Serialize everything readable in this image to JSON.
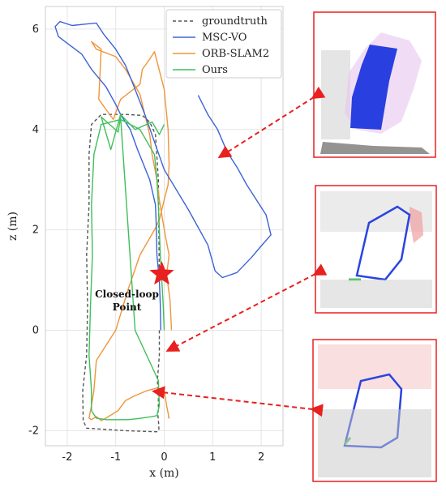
{
  "chart_data": {
    "type": "line",
    "title": "",
    "xlabel": "x (m)",
    "ylabel": "z (m)",
    "xlim": [
      -2.45,
      2.45
    ],
    "ylim": [
      -2.3,
      6.45
    ],
    "xticks": [
      -2,
      -1,
      0,
      1,
      2
    ],
    "yticks": [
      -2,
      0,
      2,
      4,
      6
    ],
    "grid": true,
    "legend_position": "top-right",
    "annotation": {
      "text_line1": "Closed-loop",
      "text_line2": "Point",
      "star_at": [
        -0.05,
        1.12
      ]
    },
    "series": [
      {
        "name": "groundtruth",
        "color": "#555555",
        "style": "dashed",
        "x": [
          -0.1,
          -0.1,
          -0.14,
          -0.12,
          -0.12,
          -0.13,
          -0.12,
          -0.11,
          -0.11,
          -0.12,
          -0.14,
          -0.2,
          -0.8,
          -1.6,
          -1.67,
          -1.68,
          -1.6,
          -1.58,
          -1.6,
          -1.55,
          -1.55,
          -1.5,
          -1.3,
          -0.8,
          -0.45,
          -0.3,
          -0.18,
          -0.12,
          -0.1
        ],
        "y": [
          0.0,
          -0.5,
          -1.0,
          -1.35,
          -1.55,
          -1.68,
          -1.8,
          -1.9,
          -1.97,
          -2.0,
          -2.02,
          -2.02,
          -2.0,
          -1.95,
          -1.8,
          -1.2,
          -0.5,
          0.5,
          1.5,
          2.5,
          3.5,
          4.1,
          4.3,
          4.3,
          4.28,
          4.15,
          3.9,
          3.0,
          1.0
        ]
      },
      {
        "name": "MSC-VO",
        "color": "#3b63d6",
        "style": "solid",
        "x": [
          -0.07,
          -0.08,
          -0.1,
          -0.15,
          -0.16,
          -0.18,
          -0.3,
          -0.55,
          -0.7,
          -0.9,
          -1.0,
          -1.2,
          -1.5,
          -1.7,
          -2.18,
          -2.25,
          -2.15,
          -1.9,
          -1.62,
          -1.4,
          -1.25,
          -1.0,
          -0.8,
          -0.62,
          -0.4,
          0.0,
          0.5,
          0.9,
          1.05,
          1.2,
          1.5,
          1.8,
          2.0,
          2.2,
          2.1,
          1.7,
          1.5,
          1.3,
          1.1,
          0.9,
          0.7
        ],
        "y": [
          0.0,
          0.5,
          1.0,
          1.5,
          2.0,
          2.5,
          3.0,
          3.6,
          4.0,
          4.3,
          4.5,
          4.85,
          5.2,
          5.5,
          5.85,
          6.05,
          6.15,
          6.07,
          6.1,
          6.12,
          5.9,
          5.6,
          5.28,
          4.85,
          4.3,
          3.2,
          2.4,
          1.7,
          1.18,
          1.05,
          1.15,
          1.45,
          1.68,
          1.9,
          2.3,
          2.9,
          3.25,
          3.55,
          4.0,
          4.3,
          4.68
        ]
      },
      {
        "name": "ORB-SLAM2",
        "color": "#f0953a",
        "style": "solid",
        "x": [
          0.15,
          0.12,
          0.05,
          0.1,
          0.02,
          -0.05,
          -0.1,
          -0.15,
          -0.25,
          -0.3,
          -0.4,
          -0.5,
          -0.8,
          -1.0,
          -1.4,
          -1.5,
          -1.3,
          -1.35,
          -1.2,
          -1.05,
          -0.9,
          -0.5,
          -0.45,
          -0.3,
          -0.2,
          0.0,
          0.08,
          0.1,
          0.08,
          0.0,
          -0.05,
          -0.1,
          -0.2,
          -0.5,
          -0.75,
          -1.0,
          -1.4,
          -1.45,
          -1.5,
          -1.55,
          -1.5,
          -1.4,
          -1.3,
          -1.2,
          -0.95,
          -0.8,
          -0.6,
          -0.35,
          -0.15,
          0.0,
          0.05,
          0.1,
          0.08
        ],
        "y": [
          0.0,
          0.6,
          1.1,
          1.5,
          1.9,
          2.3,
          2.6,
          3.0,
          3.5,
          3.9,
          4.3,
          4.7,
          5.2,
          5.45,
          5.6,
          5.75,
          5.6,
          4.6,
          4.4,
          4.2,
          4.6,
          4.9,
          5.2,
          5.4,
          5.55,
          4.8,
          4.0,
          3.3,
          2.9,
          2.6,
          2.4,
          2.2,
          2.0,
          1.5,
          0.8,
          0.0,
          -0.6,
          -1.2,
          -1.5,
          -1.75,
          -1.78,
          -1.72,
          -1.8,
          -1.75,
          -1.6,
          -1.4,
          -1.3,
          -1.2,
          -1.15,
          -1.2,
          -1.5,
          -1.75,
          -1.72
        ]
      },
      {
        "name": "Ours",
        "color": "#3fbf5a",
        "style": "solid",
        "x": [
          0.0,
          -0.02,
          -0.05,
          -0.08,
          -0.1,
          -0.12,
          -0.15,
          -0.2,
          -0.5,
          -0.9,
          -1.3,
          -1.45,
          -1.5,
          -1.48,
          -1.52,
          -1.55,
          -1.5,
          -1.5,
          -1.4,
          -1.2,
          -1.0,
          -0.75,
          -0.55,
          -0.4,
          -0.25,
          -0.15,
          -0.1,
          -0.12,
          -0.6,
          -0.9,
          -0.95,
          -1.3,
          -1.1,
          -0.9,
          -0.6,
          -0.25,
          -0.1,
          0.0
        ],
        "y": [
          0.0,
          0.5,
          1.0,
          1.5,
          2.0,
          2.5,
          3.0,
          3.5,
          4.0,
          4.2,
          4.1,
          3.5,
          2.5,
          1.5,
          0.5,
          -0.5,
          -1.2,
          -1.6,
          -1.75,
          -1.78,
          -1.78,
          -1.78,
          -1.76,
          -1.74,
          -1.72,
          -1.7,
          -1.5,
          -1.0,
          0.0,
          4.25,
          3.95,
          4.25,
          3.6,
          4.3,
          4.0,
          4.15,
          3.9,
          4.1
        ]
      }
    ]
  }
}
